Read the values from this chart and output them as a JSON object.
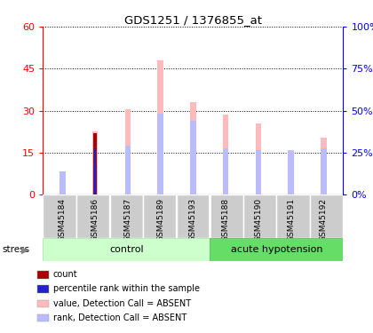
{
  "title": "GDS1251 / 1376855_at",
  "samples": [
    "GSM45184",
    "GSM45186",
    "GSM45187",
    "GSM45189",
    "GSM45193",
    "GSM45188",
    "GSM45190",
    "GSM45191",
    "GSM45192"
  ],
  "value_absent": [
    8.0,
    22.5,
    30.5,
    48.0,
    33.0,
    28.5,
    25.5,
    16.0,
    20.5
  ],
  "rank_absent": [
    8.5,
    10.5,
    17.5,
    29.0,
    26.5,
    16.5,
    16.0,
    15.5,
    16.5
  ],
  "count_value": [
    0,
    22.0,
    0,
    0,
    0,
    0,
    0,
    0,
    0
  ],
  "percentile_rank": [
    0,
    16.5,
    0,
    0,
    0,
    0,
    0,
    0,
    0
  ],
  "ylim_left": [
    0,
    60
  ],
  "ylim_right": [
    0,
    100
  ],
  "yticks_left": [
    0,
    15,
    30,
    45,
    60
  ],
  "yticks_right": [
    0,
    25,
    50,
    75,
    100
  ],
  "ytick_labels_right": [
    "0%",
    "25%",
    "50%",
    "75%",
    "100%"
  ],
  "color_count": "#aa0000",
  "color_rank": "#2222cc",
  "color_value_absent": "#ffbbbb",
  "color_rank_absent": "#bbbbff",
  "bar_width": 0.18,
  "rank_bar_width": 0.18,
  "control_n": 5,
  "hypotension_n": 4,
  "color_control": "#ccffcc",
  "color_hypotension": "#66dd66",
  "color_label_box": "#cccccc"
}
